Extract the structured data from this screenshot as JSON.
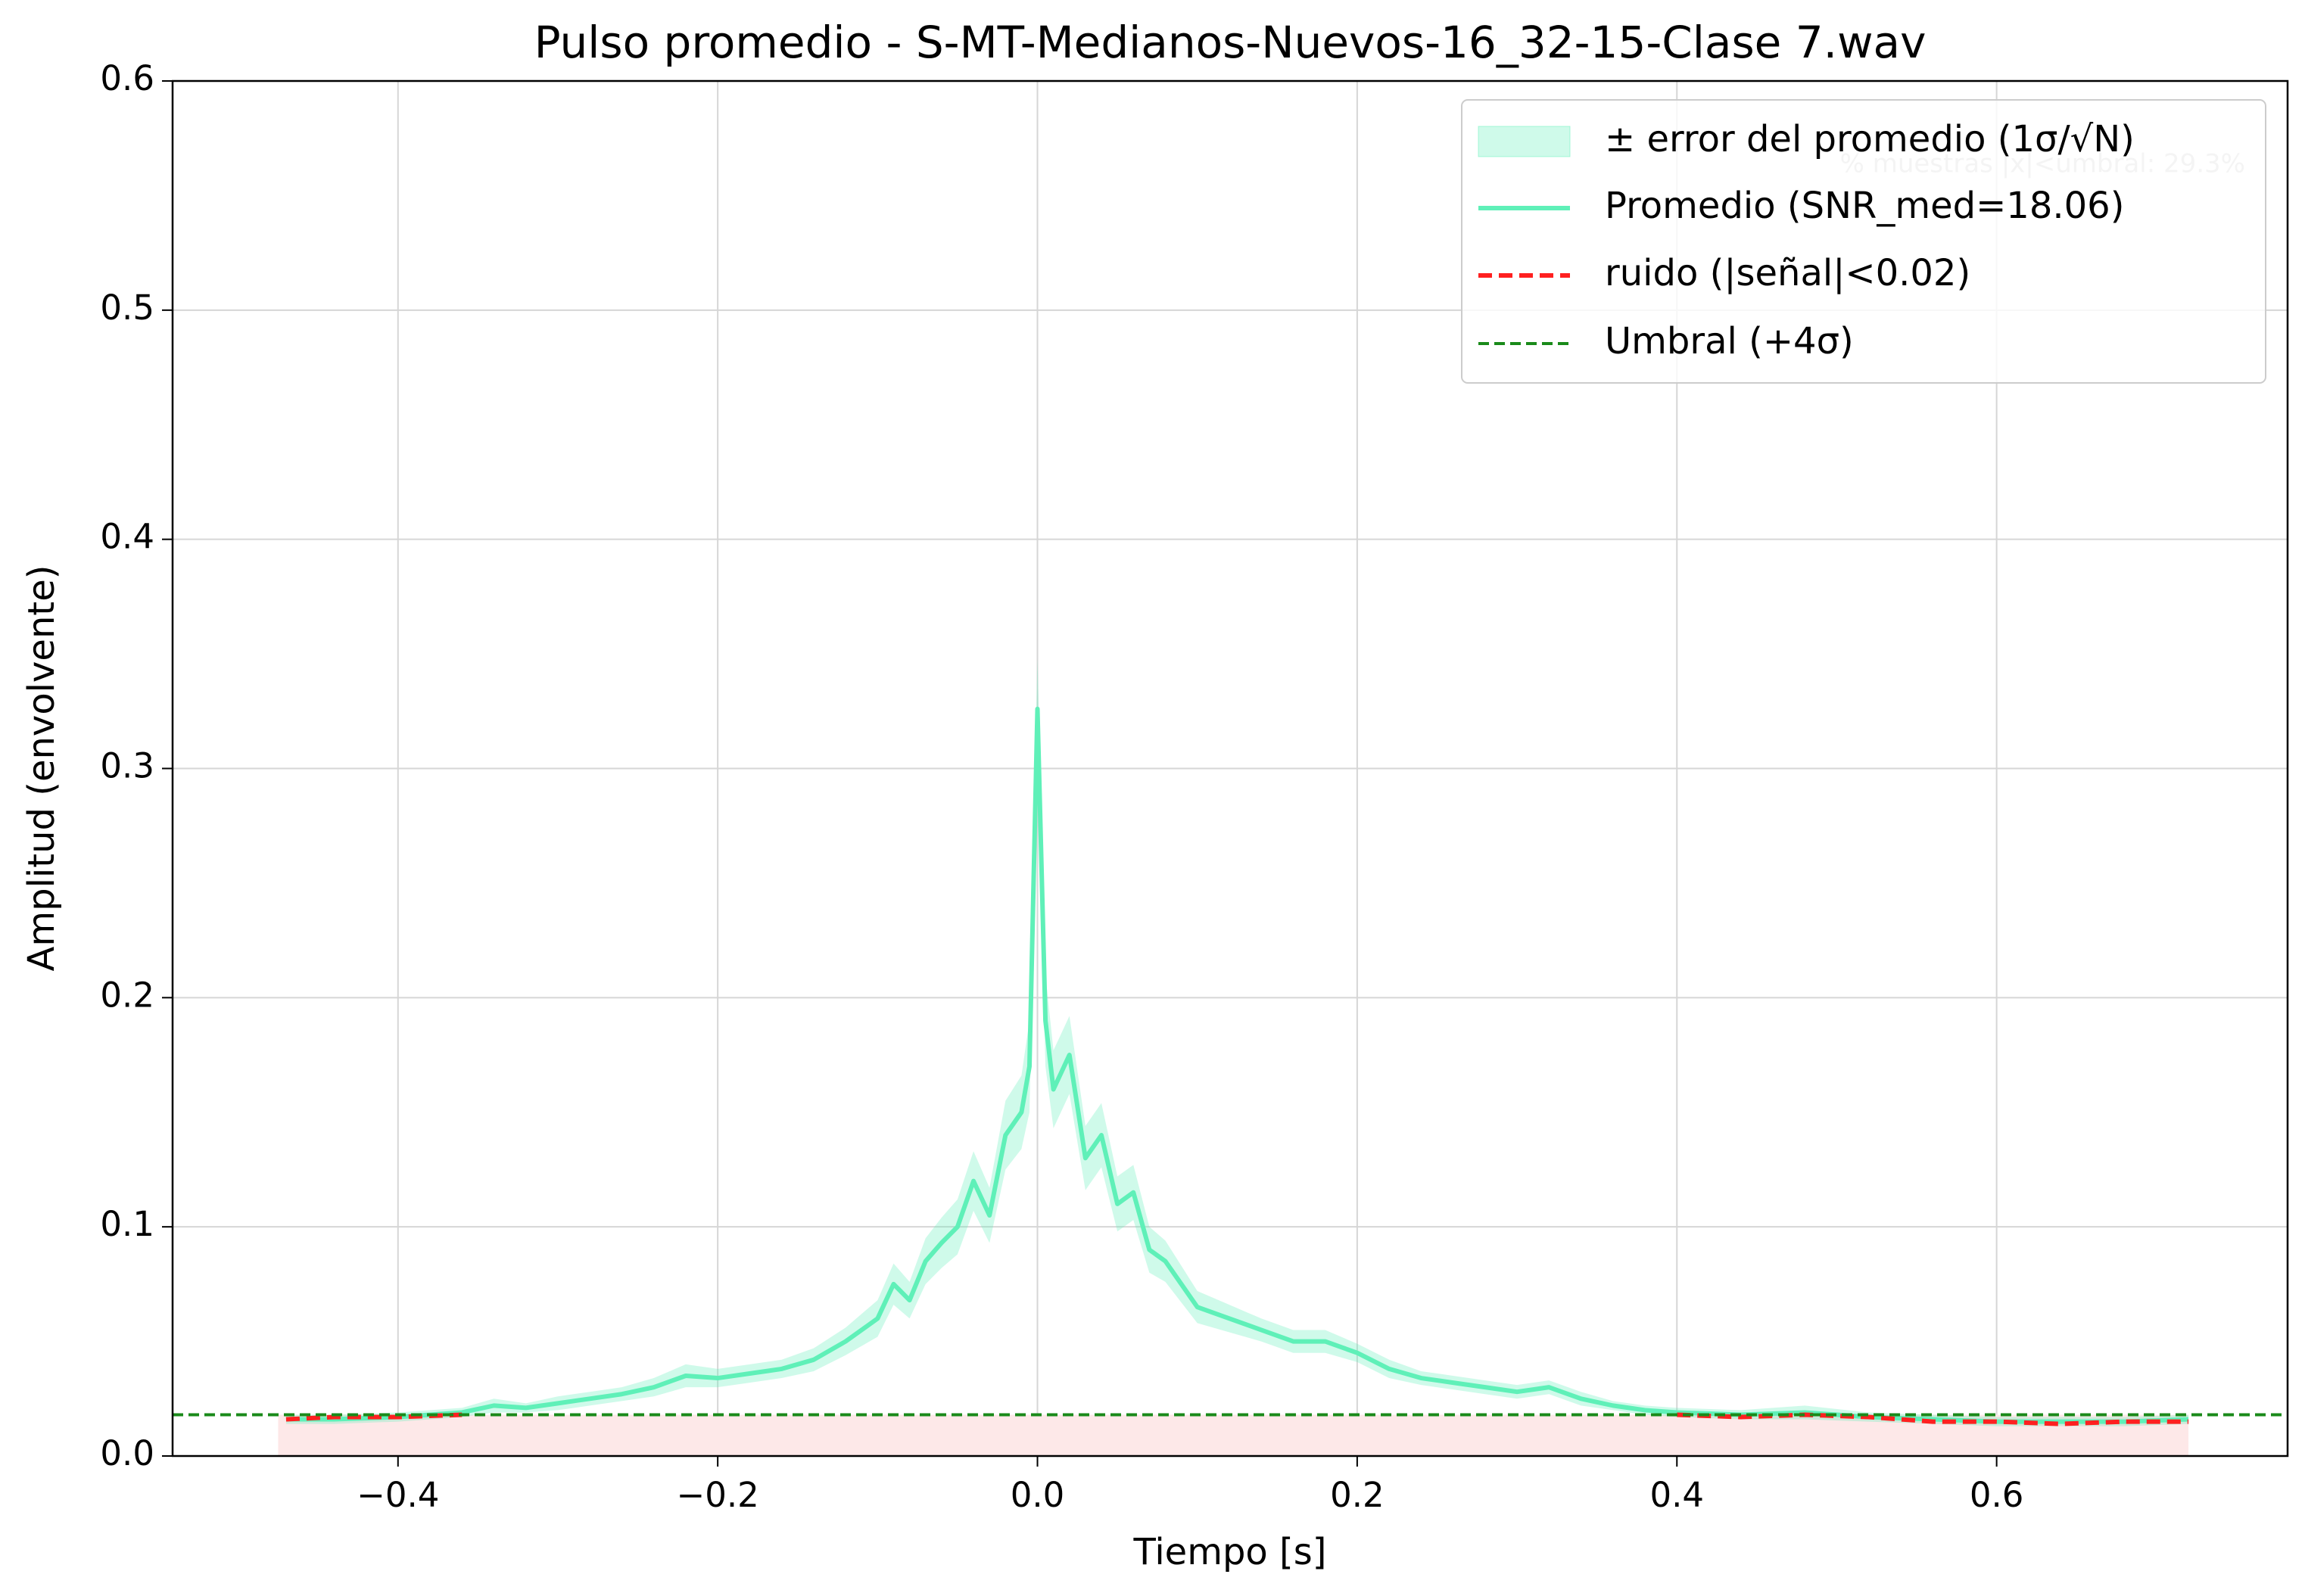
{
  "chart_data": {
    "type": "line",
    "title": "Pulso promedio - S-MT-Medianos-Nuevos-16_32-15-Clase 7.wav",
    "x_label": "Tiempo [s]",
    "y_label": "Amplitud (envolvente)",
    "annotation": "% muestras |x|<umbral: 29.3%",
    "xlim": [
      -0.541,
      0.782
    ],
    "ylim": [
      0,
      0.6
    ],
    "xticks": [
      {
        "value": -0.4,
        "label": "−0.4"
      },
      {
        "value": -0.2,
        "label": "−0.2"
      },
      {
        "value": 0,
        "label": "0.0"
      },
      0.2,
      0.4,
      0.6
    ],
    "yticks": [
      {
        "value": 0,
        "label": "0.0"
      },
      0.1,
      0.2,
      0.3,
      0.4,
      0.5,
      0.6
    ],
    "grid": true,
    "legend_position": "upper right",
    "x": [
      -0.47,
      -0.44,
      -0.4,
      -0.36,
      -0.34,
      -0.32,
      -0.3,
      -0.28,
      -0.26,
      -0.24,
      -0.22,
      -0.2,
      -0.18,
      -0.16,
      -0.14,
      -0.12,
      -0.1,
      -0.09,
      -0.08,
      -0.07,
      -0.06,
      -0.05,
      -0.04,
      -0.03,
      -0.02,
      -0.01,
      -0.005,
      0,
      0.005,
      0.01,
      0.02,
      0.03,
      0.04,
      0.05,
      0.06,
      0.07,
      0.08,
      0.09,
      0.1,
      0.12,
      0.14,
      0.16,
      0.18,
      0.2,
      0.22,
      0.24,
      0.26,
      0.28,
      0.3,
      0.32,
      0.34,
      0.36,
      0.38,
      0.4,
      0.44,
      0.48,
      0.52,
      0.56,
      0.6,
      0.64,
      0.68,
      0.72
    ],
    "series": [
      {
        "name": "Promedio (SNR_med=18.06)",
        "color": "#5ff0b8",
        "error_name": "± error del promedio (1σ/√N)",
        "error_color": "#5ff0b8",
        "values": [
          0.016,
          0.016,
          0.017,
          0.019,
          0.022,
          0.021,
          0.023,
          0.025,
          0.027,
          0.03,
          0.035,
          0.034,
          0.036,
          0.038,
          0.042,
          0.05,
          0.06,
          0.075,
          0.068,
          0.085,
          0.093,
          0.1,
          0.12,
          0.105,
          0.14,
          0.15,
          0.17,
          0.326,
          0.19,
          0.16,
          0.175,
          0.13,
          0.14,
          0.11,
          0.115,
          0.09,
          0.085,
          0.075,
          0.065,
          0.06,
          0.055,
          0.05,
          0.05,
          0.045,
          0.038,
          0.034,
          0.032,
          0.03,
          0.028,
          0.03,
          0.025,
          0.022,
          0.02,
          0.019,
          0.018,
          0.019,
          0.017,
          0.016,
          0.015,
          0.015,
          0.015,
          0.016
        ],
        "errors": [
          0.002,
          0.002,
          0.002,
          0.002,
          0.003,
          0.002,
          0.003,
          0.003,
          0.003,
          0.004,
          0.005,
          0.004,
          0.004,
          0.004,
          0.005,
          0.006,
          0.008,
          0.009,
          0.008,
          0.01,
          0.011,
          0.012,
          0.013,
          0.012,
          0.015,
          0.016,
          0.02,
          0.022,
          0.02,
          0.017,
          0.017,
          0.014,
          0.014,
          0.012,
          0.012,
          0.01,
          0.009,
          0.008,
          0.007,
          0.006,
          0.005,
          0.005,
          0.005,
          0.004,
          0.004,
          0.003,
          0.003,
          0.003,
          0.003,
          0.003,
          0.003,
          0.002,
          0.002,
          0.002,
          0.002,
          0.003,
          0.002,
          0.002,
          0.002,
          0.002,
          0.002,
          0.002
        ]
      },
      {
        "name": "ruido (|señal|<0.02)",
        "color": "#ff2020",
        "values": [
          0.016,
          0.017,
          0.017,
          0.018,
          null,
          null,
          null,
          null,
          null,
          null,
          null,
          null,
          null,
          null,
          null,
          null,
          null,
          null,
          null,
          null,
          null,
          null,
          null,
          null,
          null,
          null,
          null,
          null,
          null,
          null,
          null,
          null,
          null,
          null,
          null,
          null,
          null,
          null,
          null,
          null,
          null,
          null,
          null,
          null,
          null,
          null,
          null,
          null,
          null,
          null,
          null,
          null,
          null,
          0.018,
          0.017,
          0.018,
          0.017,
          0.015,
          0.015,
          0.014,
          0.015,
          0.015
        ]
      }
    ],
    "threshold": {
      "name": "Umbral (+4σ)",
      "value": 0.018,
      "color": "#1a8a1a"
    },
    "noise_span": [
      -0.475,
      0.72
    ],
    "noise_span_color": "#fde8e8"
  }
}
